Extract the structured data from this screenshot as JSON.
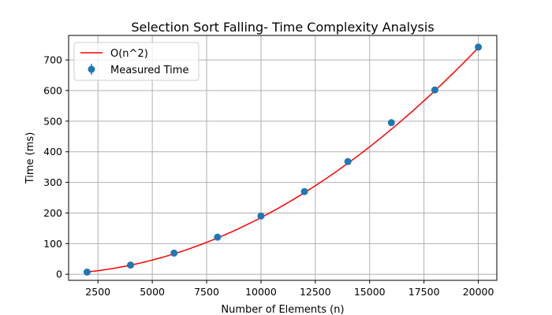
{
  "chart_data": {
    "type": "scatter",
    "title": "Selection Sort Falling- Time Complexity Analysis",
    "xlabel": "Number of Elements (n)",
    "ylabel": "Time (ms)",
    "xlim": [
      1150,
      20850
    ],
    "ylim": [
      -20,
      780
    ],
    "xticks": [
      2500,
      5000,
      7500,
      10000,
      12500,
      15000,
      17500,
      20000
    ],
    "yticks": [
      0,
      100,
      200,
      300,
      400,
      500,
      600,
      700
    ],
    "grid": true,
    "legend_position": "top-left",
    "series": [
      {
        "name": "O(n^2)",
        "kind": "line",
        "color": "#ff0000",
        "model": "a*n^2",
        "coefficient": 1.85e-06,
        "x_range": [
          2000,
          20000
        ]
      },
      {
        "name": "Measured Time",
        "kind": "scatter_errorbar",
        "color": "#1f77b4",
        "x": [
          2000,
          4000,
          6000,
          8000,
          10000,
          12000,
          14000,
          16000,
          18000,
          20000
        ],
        "y": [
          7,
          30,
          69,
          121,
          190,
          270,
          368,
          495,
          602,
          742
        ]
      }
    ]
  }
}
